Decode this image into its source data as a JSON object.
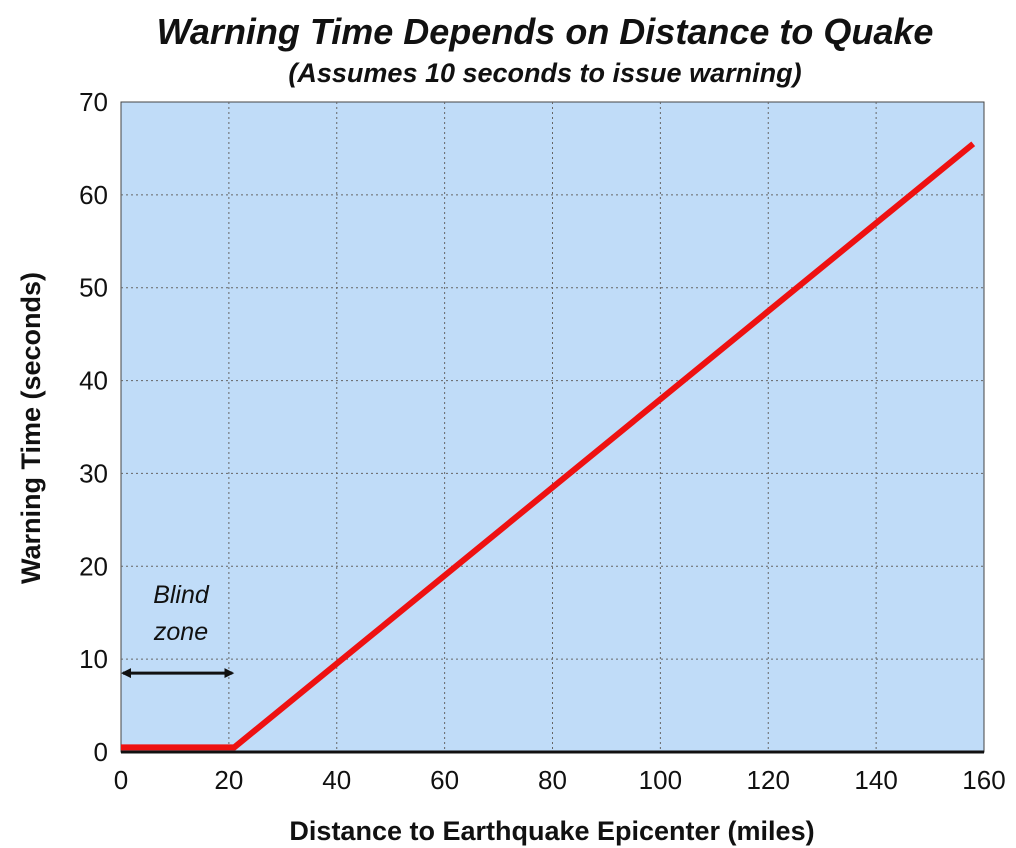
{
  "chart_data": {
    "type": "line",
    "title": "Warning Time Depends on Distance to Quake",
    "subtitle": "(Assumes 10 seconds to issue warning)",
    "xlabel": "Distance to Earthquake Epicenter (miles)",
    "ylabel": "Warning Time (seconds)",
    "xlim": [
      0,
      160
    ],
    "ylim": [
      0,
      70
    ],
    "x_ticks": [
      "0",
      "20",
      "40",
      "60",
      "80",
      "100",
      "120",
      "140",
      "160"
    ],
    "y_ticks": [
      "0",
      "10",
      "20",
      "30",
      "40",
      "50",
      "60",
      "70"
    ],
    "grid": true,
    "plot_background": "#c0dcf8",
    "series": [
      {
        "color": "#ee1111",
        "points": [
          [
            0,
            0.5
          ],
          [
            21,
            0.5
          ],
          [
            158,
            65.5
          ]
        ]
      }
    ],
    "annotations": [
      {
        "text_line1": "Blind",
        "text_line2": "zone",
        "arrow_from_x": 0,
        "arrow_to_x": 21,
        "arrow_y": 8.5
      }
    ]
  }
}
